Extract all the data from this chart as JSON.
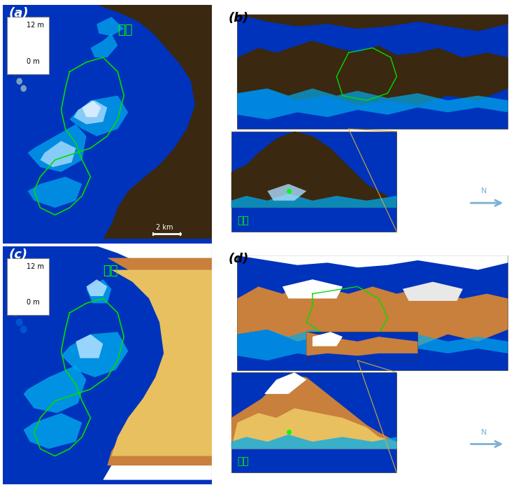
{
  "fig_width": 7.48,
  "fig_height": 7.03,
  "bg_color": "#ffffff",
  "panel_labels": [
    "(a)",
    "(b)",
    "(c)",
    "(d)"
  ],
  "label_fontstyle": "italic",
  "label_fontsize": 13,
  "label_fontweight": "bold",
  "wongeon_text": "원전",
  "wongeon_color": "#00ff00",
  "wongeon_fontsize": 13,
  "ocean_color": "#0033bb",
  "flood_cyan": "#00aaee",
  "flood_light": "#aaddff",
  "land_dark": "#3a2810",
  "land_brown": "#c8803c",
  "land_yellow": "#e8c060",
  "legend_12m": "12 m",
  "legend_0m": "0 m",
  "scalebar_text": "2 km",
  "arrow_color": "#7ab0d4",
  "inset_border_color": "#ccaa44",
  "green_outline": "#00dd00"
}
